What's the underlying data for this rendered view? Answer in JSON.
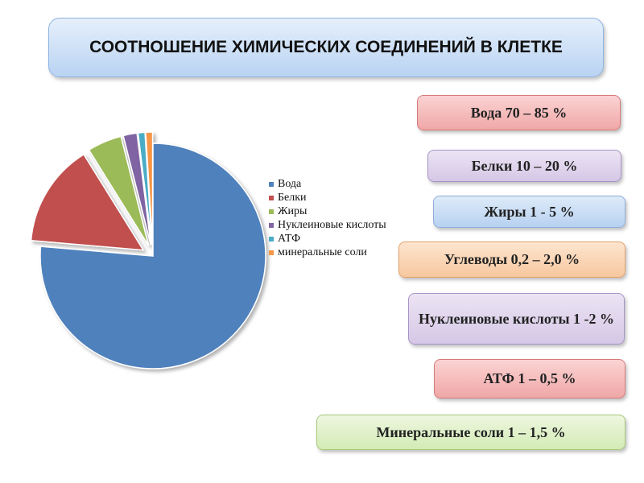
{
  "title": "СООТНОШЕНИЕ ХИМИЧЕСКИХ СОЕДИНЕНИЙ В КЛЕТКЕ",
  "chart_data": {
    "type": "pie",
    "categories": [
      "Вода",
      "Белки",
      "Жиры",
      "Нуклеиновые кислоты",
      "АТФ",
      "минеральные соли"
    ],
    "values": [
      77.5,
      15,
      5,
      2,
      1,
      1
    ],
    "colors": [
      "#4f81bd",
      "#c0504d",
      "#9bbb59",
      "#8064a2",
      "#4bacc6",
      "#f79646"
    ],
    "exploded": [
      "Белки",
      "Жиры",
      "Нуклеиновые кислоты",
      "АТФ",
      "минеральные соли"
    ],
    "legend_position": "right"
  },
  "tags": [
    {
      "text": "Вода 70 – 85 %",
      "color": "red"
    },
    {
      "text": "Белки 10 – 20 %",
      "color": "purple"
    },
    {
      "text": "Жиры 1 - 5 %",
      "color": "blue"
    },
    {
      "text": "Углеводы 0,2 – 2,0 %",
      "color": "orange"
    },
    {
      "text": "Нуклеиновые кислоты 1 -2 %",
      "color": "purple"
    },
    {
      "text": "АТФ 1 – 0,5 %",
      "color": "red"
    },
    {
      "text": "Минеральные соли 1 – 1,5 %",
      "color": "green"
    }
  ]
}
